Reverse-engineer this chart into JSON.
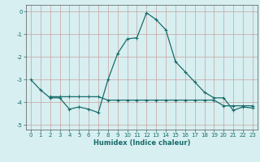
{
  "x_main": [
    0,
    1,
    2,
    3,
    4,
    5,
    6,
    7,
    8,
    9,
    10,
    11,
    12,
    13,
    14,
    15,
    16,
    17,
    18,
    19,
    20,
    21,
    22,
    23
  ],
  "y_main": [
    -3.0,
    -3.45,
    -3.8,
    -3.8,
    -4.3,
    -4.2,
    -4.3,
    -4.45,
    -3.0,
    -1.85,
    -1.2,
    -1.15,
    -0.05,
    -0.35,
    -0.8,
    -2.2,
    -2.65,
    -3.1,
    -3.55,
    -3.8,
    -3.8,
    -4.35,
    -4.2,
    -4.25
  ],
  "x_flat": [
    2,
    3,
    4,
    5,
    6,
    7,
    8,
    9,
    10,
    11,
    12,
    13,
    14,
    15,
    16,
    17,
    18,
    19,
    20,
    21,
    22,
    23
  ],
  "y_flat": [
    -3.75,
    -3.75,
    -3.75,
    -3.75,
    -3.75,
    -3.75,
    -3.9,
    -3.9,
    -3.9,
    -3.9,
    -3.9,
    -3.9,
    -3.9,
    -3.9,
    -3.9,
    -3.9,
    -3.9,
    -3.9,
    -4.15,
    -4.15,
    -4.15,
    -4.15
  ],
  "line_color": "#1a6b6b",
  "bg_color": "#d7eff0",
  "grid_color_major": "#c8a8a8",
  "grid_color_minor": "#c8d8c8",
  "xlabel": "Humidex (Indice chaleur)",
  "ylim": [
    -5.2,
    0.3
  ],
  "xlim": [
    -0.5,
    23.5
  ],
  "yticks": [
    0,
    -1,
    -2,
    -3,
    -4,
    -5
  ],
  "xticks": [
    0,
    1,
    2,
    3,
    4,
    5,
    6,
    7,
    8,
    9,
    10,
    11,
    12,
    13,
    14,
    15,
    16,
    17,
    18,
    19,
    20,
    21,
    22,
    23
  ],
  "marker": "+",
  "markersize": 3,
  "linewidth": 0.9,
  "tick_fontsize": 5,
  "label_fontsize": 6,
  "tick_color": "#1a6b6b"
}
